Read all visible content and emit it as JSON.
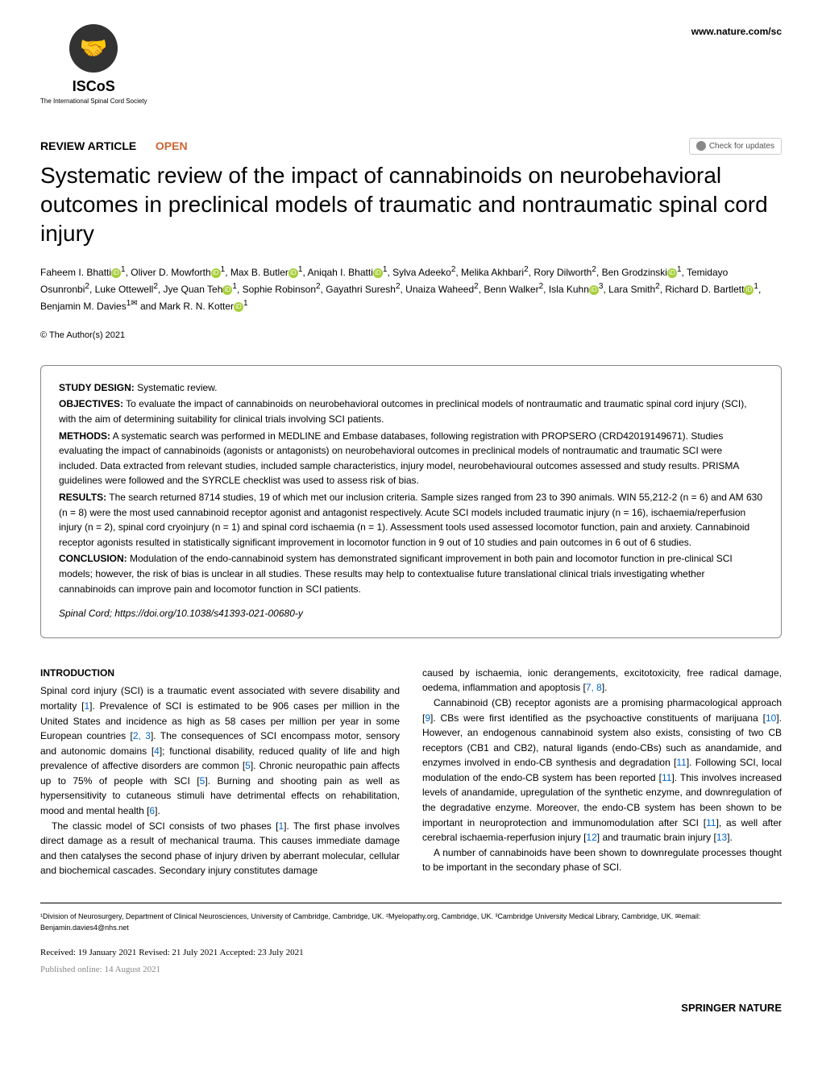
{
  "header": {
    "logo_main": "ISCoS",
    "logo_sub": "The International\nSpinal Cord Society",
    "url": "www.nature.com/sc"
  },
  "article_meta": {
    "type": "REVIEW ARTICLE",
    "open": "OPEN",
    "check_updates": "Check for updates"
  },
  "title": "Systematic review of the impact of cannabinoids on neurobehavioral outcomes in preclinical models of traumatic and nontraumatic spinal cord injury",
  "authors_html": "Faheem I. Bhatti<sup>1</sup>, Oliver D. Mowforth<sup>1</sup>, Max B. Butler<sup>1</sup>, Aniqah I. Bhatti<sup>1</sup>, Sylva Adeeko<sup>2</sup>, Melika Akhbari<sup>2</sup>, Rory Dilworth<sup>2</sup>, Ben Grodzinski<sup>1</sup>, Temidayo Osunronbi<sup>2</sup>, Luke Ottewell<sup>2</sup>, Jye Quan Teh<sup>1</sup>, Sophie Robinson<sup>2</sup>, Gayathri Suresh<sup>2</sup>, Unaiza Waheed<sup>2</sup>, Benn Walker<sup>2</sup>, Isla Kuhn<sup>3</sup>, Lara Smith<sup>2</sup>, Richard D. Bartlett<sup>1</sup>, Benjamin M. Davies<sup>1✉</sup> and Mark R. N. Kotter<sup>1</sup>",
  "copyright": "© The Author(s) 2021",
  "abstract": {
    "study_design_label": "STUDY DESIGN:",
    "study_design": "Systematic review.",
    "objectives_label": "OBJECTIVES:",
    "objectives": "To evaluate the impact of cannabinoids on neurobehavioral outcomes in preclinical models of nontraumatic and traumatic spinal cord injury (SCI), with the aim of determining suitability for clinical trials involving SCI patients.",
    "methods_label": "METHODS:",
    "methods": "A systematic search was performed in MEDLINE and Embase databases, following registration with PROPSERO (CRD42019149671). Studies evaluating the impact of cannabinoids (agonists or antagonists) on neurobehavioral outcomes in preclinical models of nontraumatic and traumatic SCI were included. Data extracted from relevant studies, included sample characteristics, injury model, neurobehavioural outcomes assessed and study results. PRISMA guidelines were followed and the SYRCLE checklist was used to assess risk of bias.",
    "results_label": "RESULTS:",
    "results": "The search returned 8714 studies, 19 of which met our inclusion criteria. Sample sizes ranged from 23 to 390 animals. WIN 55,212-2 (n = 6) and AM 630 (n = 8) were the most used cannabinoid receptor agonist and antagonist respectively. Acute SCI models included traumatic injury (n = 16), ischaemia/reperfusion injury (n = 2), spinal cord cryoinjury (n = 1) and spinal cord ischaemia (n = 1). Assessment tools used assessed locomotor function, pain and anxiety. Cannabinoid receptor agonists resulted in statistically significant improvement in locomotor function in 9 out of 10 studies and pain outcomes in 6 out of 6 studies.",
    "conclusion_label": "CONCLUSION:",
    "conclusion": "Modulation of the endo-cannabinoid system has demonstrated significant improvement in both pain and locomotor function in pre-clinical SCI models; however, the risk of bias is unclear in all studies. These results may help to contextualise future translational clinical trials investigating whether cannabinoids can improve pain and locomotor function in SCI patients.",
    "journal": "Spinal Cord",
    "doi": "https://doi.org/10.1038/s41393-021-00680-y"
  },
  "intro_heading": "INTRODUCTION",
  "body": {
    "col1_p1": "Spinal cord injury (SCI) is a traumatic event associated with severe disability and mortality [1]. Prevalence of SCI is estimated to be 906 cases per million in the United States and incidence as high as 58 cases per million per year in some European countries [2, 3]. The consequences of SCI encompass motor, sensory and autonomic domains [4]; functional disability, reduced quality of life and high prevalence of affective disorders are common [5]. Chronic neuropathic pain affects up to 75% of people with SCI [5]. Burning and shooting pain as well as hypersensitivity to cutaneous stimuli have detrimental effects on rehabilitation, mood and mental health [6].",
    "col1_p2": "The classic model of SCI consists of two phases [1]. The first phase involves direct damage as a result of mechanical trauma. This causes immediate damage and then catalyses the second phase of injury driven by aberrant molecular, cellular and biochemical cascades. Secondary injury constitutes damage",
    "col2_p1": "caused by ischaemia, ionic derangements, excitotoxicity, free radical damage, oedema, inflammation and apoptosis [7, 8].",
    "col2_p2": "Cannabinoid (CB) receptor agonists are a promising pharmacological approach [9]. CBs were first identified as the psychoactive constituents of marijuana [10]. However, an endogenous cannabinoid system also exists, consisting of two CB receptors (CB1 and CB2), natural ligands (endo-CBs) such as anandamide, and enzymes involved in endo-CB synthesis and degradation [11]. Following SCI, local modulation of the endo-CB system has been reported [11]. This involves increased levels of anandamide, upregulation of the synthetic enzyme, and downregulation of the degradative enzyme. Moreover, the endo-CB system has been shown to be important in neuroprotection and immunomodulation after SCI [11], as well after cerebral ischaemia-reperfusion injury [12] and traumatic brain injury [13].",
    "col2_p3": "A number of cannabinoids have been shown to downregulate processes thought to be important in the secondary phase of SCI."
  },
  "affiliations": "¹Division of Neurosurgery, Department of Clinical Neurosciences, University of Cambridge, Cambridge, UK. ²Myelopathy.org, Cambridge, UK. ³Cambridge University Medical Library, Cambridge, UK. ✉email: Benjamin.davies4@nhs.net",
  "dates": {
    "received": "Received: 19 January 2021",
    "revised": "Revised: 21 July 2021",
    "accepted": "Accepted: 23 July 2021",
    "published": "Published online: 14 August 2021"
  },
  "footer_brand": "SPRINGER NATURE"
}
